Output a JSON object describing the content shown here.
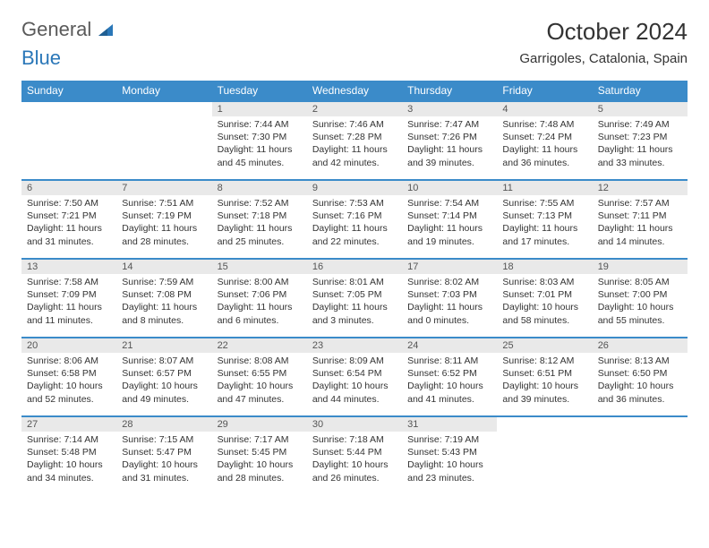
{
  "brand": {
    "word1": "General",
    "word2": "Blue"
  },
  "title": "October 2024",
  "location": "Garrigoles, Catalonia, Spain",
  "colors": {
    "header_bg": "#3b8bc9",
    "header_text": "#ffffff",
    "day_num_bg": "#e9e9e9",
    "border": "#3b8bc9",
    "text": "#333333",
    "brand_gray": "#5a5a5a",
    "brand_blue": "#2a77b8"
  },
  "dow": [
    "Sunday",
    "Monday",
    "Tuesday",
    "Wednesday",
    "Thursday",
    "Friday",
    "Saturday"
  ],
  "weeks": [
    [
      null,
      null,
      {
        "n": "1",
        "sr": "7:44 AM",
        "ss": "7:30 PM",
        "d1": "Daylight: 11 hours",
        "d2": "and 45 minutes."
      },
      {
        "n": "2",
        "sr": "7:46 AM",
        "ss": "7:28 PM",
        "d1": "Daylight: 11 hours",
        "d2": "and 42 minutes."
      },
      {
        "n": "3",
        "sr": "7:47 AM",
        "ss": "7:26 PM",
        "d1": "Daylight: 11 hours",
        "d2": "and 39 minutes."
      },
      {
        "n": "4",
        "sr": "7:48 AM",
        "ss": "7:24 PM",
        "d1": "Daylight: 11 hours",
        "d2": "and 36 minutes."
      },
      {
        "n": "5",
        "sr": "7:49 AM",
        "ss": "7:23 PM",
        "d1": "Daylight: 11 hours",
        "d2": "and 33 minutes."
      }
    ],
    [
      {
        "n": "6",
        "sr": "7:50 AM",
        "ss": "7:21 PM",
        "d1": "Daylight: 11 hours",
        "d2": "and 31 minutes."
      },
      {
        "n": "7",
        "sr": "7:51 AM",
        "ss": "7:19 PM",
        "d1": "Daylight: 11 hours",
        "d2": "and 28 minutes."
      },
      {
        "n": "8",
        "sr": "7:52 AM",
        "ss": "7:18 PM",
        "d1": "Daylight: 11 hours",
        "d2": "and 25 minutes."
      },
      {
        "n": "9",
        "sr": "7:53 AM",
        "ss": "7:16 PM",
        "d1": "Daylight: 11 hours",
        "d2": "and 22 minutes."
      },
      {
        "n": "10",
        "sr": "7:54 AM",
        "ss": "7:14 PM",
        "d1": "Daylight: 11 hours",
        "d2": "and 19 minutes."
      },
      {
        "n": "11",
        "sr": "7:55 AM",
        "ss": "7:13 PM",
        "d1": "Daylight: 11 hours",
        "d2": "and 17 minutes."
      },
      {
        "n": "12",
        "sr": "7:57 AM",
        "ss": "7:11 PM",
        "d1": "Daylight: 11 hours",
        "d2": "and 14 minutes."
      }
    ],
    [
      {
        "n": "13",
        "sr": "7:58 AM",
        "ss": "7:09 PM",
        "d1": "Daylight: 11 hours",
        "d2": "and 11 minutes."
      },
      {
        "n": "14",
        "sr": "7:59 AM",
        "ss": "7:08 PM",
        "d1": "Daylight: 11 hours",
        "d2": "and 8 minutes."
      },
      {
        "n": "15",
        "sr": "8:00 AM",
        "ss": "7:06 PM",
        "d1": "Daylight: 11 hours",
        "d2": "and 6 minutes."
      },
      {
        "n": "16",
        "sr": "8:01 AM",
        "ss": "7:05 PM",
        "d1": "Daylight: 11 hours",
        "d2": "and 3 minutes."
      },
      {
        "n": "17",
        "sr": "8:02 AM",
        "ss": "7:03 PM",
        "d1": "Daylight: 11 hours",
        "d2": "and 0 minutes."
      },
      {
        "n": "18",
        "sr": "8:03 AM",
        "ss": "7:01 PM",
        "d1": "Daylight: 10 hours",
        "d2": "and 58 minutes."
      },
      {
        "n": "19",
        "sr": "8:05 AM",
        "ss": "7:00 PM",
        "d1": "Daylight: 10 hours",
        "d2": "and 55 minutes."
      }
    ],
    [
      {
        "n": "20",
        "sr": "8:06 AM",
        "ss": "6:58 PM",
        "d1": "Daylight: 10 hours",
        "d2": "and 52 minutes."
      },
      {
        "n": "21",
        "sr": "8:07 AM",
        "ss": "6:57 PM",
        "d1": "Daylight: 10 hours",
        "d2": "and 49 minutes."
      },
      {
        "n": "22",
        "sr": "8:08 AM",
        "ss": "6:55 PM",
        "d1": "Daylight: 10 hours",
        "d2": "and 47 minutes."
      },
      {
        "n": "23",
        "sr": "8:09 AM",
        "ss": "6:54 PM",
        "d1": "Daylight: 10 hours",
        "d2": "and 44 minutes."
      },
      {
        "n": "24",
        "sr": "8:11 AM",
        "ss": "6:52 PM",
        "d1": "Daylight: 10 hours",
        "d2": "and 41 minutes."
      },
      {
        "n": "25",
        "sr": "8:12 AM",
        "ss": "6:51 PM",
        "d1": "Daylight: 10 hours",
        "d2": "and 39 minutes."
      },
      {
        "n": "26",
        "sr": "8:13 AM",
        "ss": "6:50 PM",
        "d1": "Daylight: 10 hours",
        "d2": "and 36 minutes."
      }
    ],
    [
      {
        "n": "27",
        "sr": "7:14 AM",
        "ss": "5:48 PM",
        "d1": "Daylight: 10 hours",
        "d2": "and 34 minutes."
      },
      {
        "n": "28",
        "sr": "7:15 AM",
        "ss": "5:47 PM",
        "d1": "Daylight: 10 hours",
        "d2": "and 31 minutes."
      },
      {
        "n": "29",
        "sr": "7:17 AM",
        "ss": "5:45 PM",
        "d1": "Daylight: 10 hours",
        "d2": "and 28 minutes."
      },
      {
        "n": "30",
        "sr": "7:18 AM",
        "ss": "5:44 PM",
        "d1": "Daylight: 10 hours",
        "d2": "and 26 minutes."
      },
      {
        "n": "31",
        "sr": "7:19 AM",
        "ss": "5:43 PM",
        "d1": "Daylight: 10 hours",
        "d2": "and 23 minutes."
      },
      null,
      null
    ]
  ],
  "labels": {
    "sunrise_prefix": "Sunrise: ",
    "sunset_prefix": "Sunset: "
  }
}
